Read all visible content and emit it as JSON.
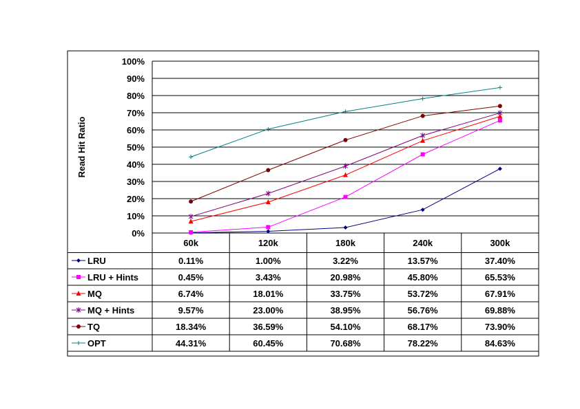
{
  "chart_data": {
    "type": "line",
    "title": "",
    "xlabel": "",
    "ylabel": "Read Hit Ratio",
    "ylim": [
      0,
      100
    ],
    "yticks": [
      "0%",
      "10%",
      "20%",
      "30%",
      "40%",
      "50%",
      "60%",
      "70%",
      "80%",
      "90%",
      "100%"
    ],
    "categories": [
      "60k",
      "120k",
      "180k",
      "240k",
      "300k"
    ],
    "grid": true,
    "legend": "data-table",
    "series": [
      {
        "name": "LRU",
        "color": "#000080",
        "marker": "diamond",
        "values": [
          0.11,
          1.0,
          3.22,
          13.57,
          37.4
        ],
        "labels": [
          "0.11%",
          "1.00%",
          "3.22%",
          "13.57%",
          "37.40%"
        ]
      },
      {
        "name": "LRU + Hints",
        "color": "#ff00ff",
        "marker": "square",
        "values": [
          0.45,
          3.43,
          20.98,
          45.8,
          65.53
        ],
        "labels": [
          "0.45%",
          "3.43%",
          "20.98%",
          "45.80%",
          "65.53%"
        ]
      },
      {
        "name": "MQ",
        "color": "#ff0000",
        "marker": "triangle",
        "values": [
          6.74,
          18.01,
          33.75,
          53.72,
          67.91
        ],
        "labels": [
          "6.74%",
          "18.01%",
          "33.75%",
          "53.72%",
          "67.91%"
        ]
      },
      {
        "name": "MQ + Hints",
        "color": "#800080",
        "marker": "star",
        "values": [
          9.57,
          23.0,
          38.95,
          56.76,
          69.88
        ],
        "labels": [
          "9.57%",
          "23.00%",
          "38.95%",
          "56.76%",
          "69.88%"
        ]
      },
      {
        "name": "TQ",
        "color": "#800000",
        "marker": "circle",
        "values": [
          18.34,
          36.59,
          54.1,
          68.17,
          73.9
        ],
        "labels": [
          "18.34%",
          "36.59%",
          "54.10%",
          "68.17%",
          "73.90%"
        ]
      },
      {
        "name": "OPT",
        "color": "#008080",
        "marker": "plus",
        "values": [
          44.31,
          60.45,
          70.68,
          78.22,
          84.63
        ],
        "labels": [
          "44.31%",
          "60.45%",
          "70.68%",
          "78.22%",
          "84.63%"
        ]
      }
    ]
  }
}
